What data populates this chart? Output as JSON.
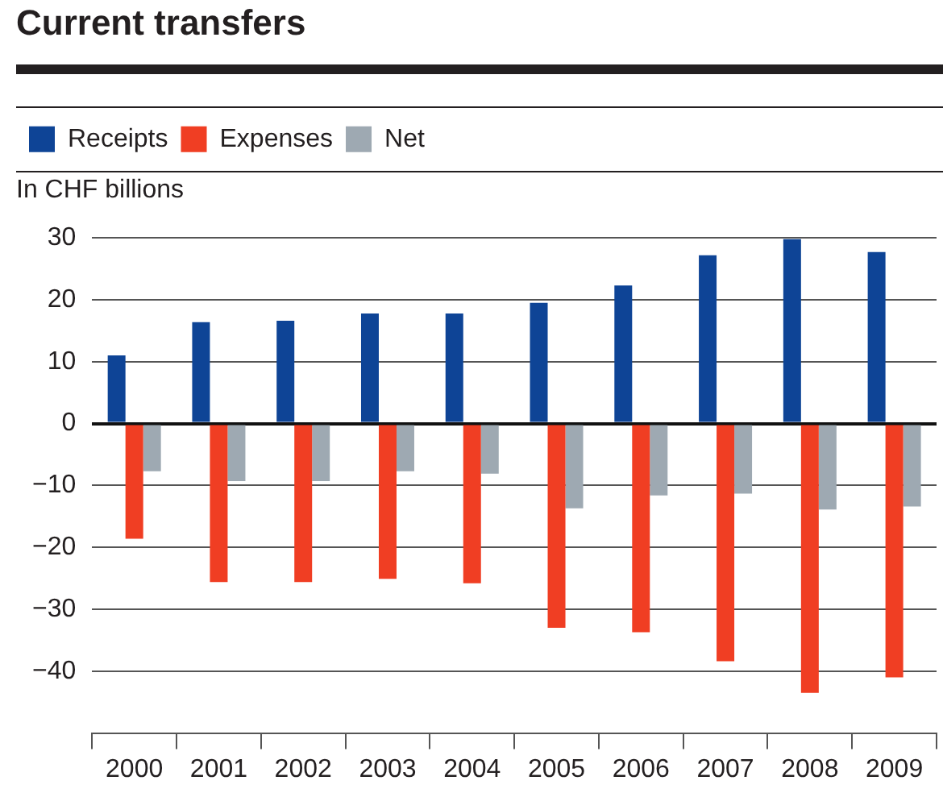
{
  "chart_data": {
    "type": "bar",
    "title": "Current transfers",
    "ylabel": "In CHF billions",
    "categories": [
      "2000",
      "2001",
      "2002",
      "2003",
      "2004",
      "2005",
      "2006",
      "2007",
      "2008",
      "2009"
    ],
    "series": [
      {
        "name": "Receipts",
        "color": "#0e4496",
        "values": [
          11.0,
          16.4,
          16.6,
          17.8,
          17.8,
          19.5,
          22.3,
          27.2,
          29.8,
          27.7
        ]
      },
      {
        "name": "Expenses",
        "color": "#f03e23",
        "values": [
          -18.6,
          -25.6,
          -25.6,
          -25.1,
          -25.8,
          -33.0,
          -33.7,
          -38.4,
          -43.5,
          -41.0
        ]
      },
      {
        "name": "Net",
        "color": "#9ea9b2",
        "values": [
          -7.7,
          -9.3,
          -9.3,
          -7.7,
          -8.1,
          -13.7,
          -11.6,
          -11.3,
          -13.9,
          -13.4
        ]
      }
    ],
    "ylim": [
      -50,
      30
    ],
    "yticks": [
      -40,
      -30,
      -20,
      -10,
      0,
      10,
      20,
      30
    ],
    "grid": "y",
    "legend": "top left"
  }
}
